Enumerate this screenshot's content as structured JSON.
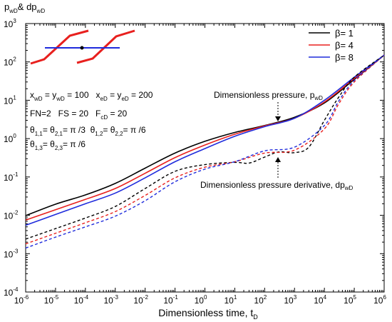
{
  "chart_data": {
    "type": "line",
    "x_scale": "log",
    "y_scale": "log",
    "xlim": [
      1e-06,
      1000000
    ],
    "ylim": [
      0.0001,
      1000
    ],
    "grid": false,
    "legend_position": "top-right",
    "ylabel_parts": {
      "p": "p",
      "sub1": "wD",
      "mid": "& dp",
      "sub2": "wD"
    },
    "xlabel_parts": {
      "main": "Dimensionless time, t",
      "sub": "D"
    },
    "x_tick_labels": [
      {
        "base": "10",
        "exp": "-6"
      },
      {
        "base": "10",
        "exp": "-5"
      },
      {
        "base": "10",
        "exp": "-4"
      },
      {
        "base": "10",
        "exp": "-3"
      },
      {
        "base": "10",
        "exp": "-2"
      },
      {
        "base": "10",
        "exp": "-1"
      },
      {
        "base": "10",
        "exp": "0"
      },
      {
        "base": "10",
        "exp": "1"
      },
      {
        "base": "10",
        "exp": "2"
      },
      {
        "base": "10",
        "exp": "3"
      },
      {
        "base": "10",
        "exp": "4"
      },
      {
        "base": "10",
        "exp": "5"
      },
      {
        "base": "10",
        "exp": "6"
      }
    ],
    "y_tick_labels": [
      {
        "base": "10",
        "exp": "-4"
      },
      {
        "base": "10",
        "exp": "-3"
      },
      {
        "base": "10",
        "exp": "-2"
      },
      {
        "base": "10",
        "exp": "-1"
      },
      {
        "base": "10",
        "exp": "0"
      },
      {
        "base": "10",
        "exp": "1"
      },
      {
        "base": "10",
        "exp": "2"
      },
      {
        "base": "10",
        "exp": "3"
      }
    ],
    "legend": [
      {
        "label": "β= 1",
        "color": "#000000"
      },
      {
        "label": "β= 4",
        "color": "#e8201e"
      },
      {
        "label": "β= 8",
        "color": "#1f2bdc"
      }
    ],
    "params": [
      [
        {
          "t": "x"
        },
        {
          "t": "wD",
          "sub": true
        },
        {
          "t": " = y"
        },
        {
          "t": "wD",
          "sub": true
        },
        {
          "t": " = 100   x"
        },
        {
          "t": "eD",
          "sub": true
        },
        {
          "t": " = y"
        },
        {
          "t": "eD",
          "sub": true
        },
        {
          "t": " = 200"
        }
      ],
      [
        {
          "t": "FN=2   FS = 20   F"
        },
        {
          "t": "cD",
          "sub": true
        },
        {
          "t": " = 20"
        }
      ],
      [
        {
          "t": "θ"
        },
        {
          "t": "1,1",
          "sub": true
        },
        {
          "t": "= θ"
        },
        {
          "t": "2,1",
          "sub": true
        },
        {
          "t": "= π /3  θ"
        },
        {
          "t": "1,2",
          "sub": true
        },
        {
          "t": "= θ"
        },
        {
          "t": "2,2",
          "sub": true
        },
        {
          "t": "= π /6"
        }
      ],
      [
        {
          "t": "θ"
        },
        {
          "t": "1,3",
          "sub": true
        },
        {
          "t": "= θ"
        },
        {
          "t": "2,3",
          "sub": true
        },
        {
          "t": "= π /6"
        }
      ]
    ],
    "annotations": [
      {
        "text": "Dimensionless pressure, p",
        "sub": "wD"
      },
      {
        "text": "Dimensionless pressure derivative, dp",
        "sub": "wD"
      }
    ],
    "series": [
      {
        "label": "β= 1",
        "curve": "pressure",
        "color": "#000000",
        "x": [
          1e-06,
          1e-05,
          0.0001,
          0.001,
          0.01,
          0.1,
          1,
          10,
          100,
          1000,
          10000,
          100000,
          1000000
        ],
        "y": [
          0.0098,
          0.0195,
          0.034,
          0.068,
          0.17,
          0.42,
          0.85,
          1.45,
          2.2,
          3.6,
          8.5,
          35,
          150
        ]
      },
      {
        "label": "β= 4",
        "curve": "pressure",
        "color": "#e8201e",
        "x": [
          1e-06,
          1e-05,
          0.0001,
          0.001,
          0.01,
          0.1,
          1,
          10,
          100,
          1000,
          10000,
          100000,
          1000000
        ],
        "y": [
          0.0075,
          0.014,
          0.026,
          0.05,
          0.125,
          0.32,
          0.68,
          1.3,
          2.15,
          3.4,
          9,
          37,
          150
        ]
      },
      {
        "label": "β= 8",
        "curve": "pressure",
        "color": "#1f2bdc",
        "x": [
          1e-06,
          1e-05,
          0.0001,
          0.001,
          0.01,
          0.1,
          1,
          10,
          100,
          1000,
          10000,
          100000,
          1000000
        ],
        "y": [
          0.0055,
          0.0105,
          0.02,
          0.038,
          0.095,
          0.25,
          0.55,
          1.15,
          2.05,
          3.4,
          10,
          40,
          150
        ]
      },
      {
        "label": "β= 1",
        "curve": "derivative",
        "color": "#000000",
        "x": [
          1e-06,
          1e-05,
          0.0001,
          0.001,
          0.01,
          0.1,
          1,
          10,
          30,
          100,
          300,
          1000,
          3000,
          10000,
          30000,
          100000,
          1000000
        ],
        "y": [
          0.0024,
          0.0045,
          0.0085,
          0.017,
          0.05,
          0.14,
          0.21,
          0.24,
          0.23,
          0.33,
          0.45,
          0.43,
          0.6,
          3,
          12,
          40,
          150
        ]
      },
      {
        "label": "β= 4",
        "curve": "derivative",
        "color": "#e8201e",
        "x": [
          1e-06,
          1e-05,
          0.0001,
          0.001,
          0.01,
          0.1,
          1,
          10,
          100,
          1000,
          10000,
          30000,
          100000,
          1000000
        ],
        "y": [
          0.0018,
          0.0034,
          0.0064,
          0.0125,
          0.033,
          0.095,
          0.18,
          0.25,
          0.42,
          0.5,
          1.8,
          8,
          30,
          150
        ]
      },
      {
        "label": "β= 8",
        "curve": "derivative",
        "color": "#1f2bdc",
        "x": [
          1e-06,
          1e-05,
          0.0001,
          0.001,
          0.01,
          0.1,
          1,
          10,
          100,
          1000,
          10000,
          30000,
          100000,
          1000000
        ],
        "y": [
          0.0014,
          0.0027,
          0.005,
          0.0095,
          0.024,
          0.075,
          0.16,
          0.25,
          0.48,
          0.6,
          2.2,
          9.5,
          33,
          150
        ]
      }
    ]
  }
}
